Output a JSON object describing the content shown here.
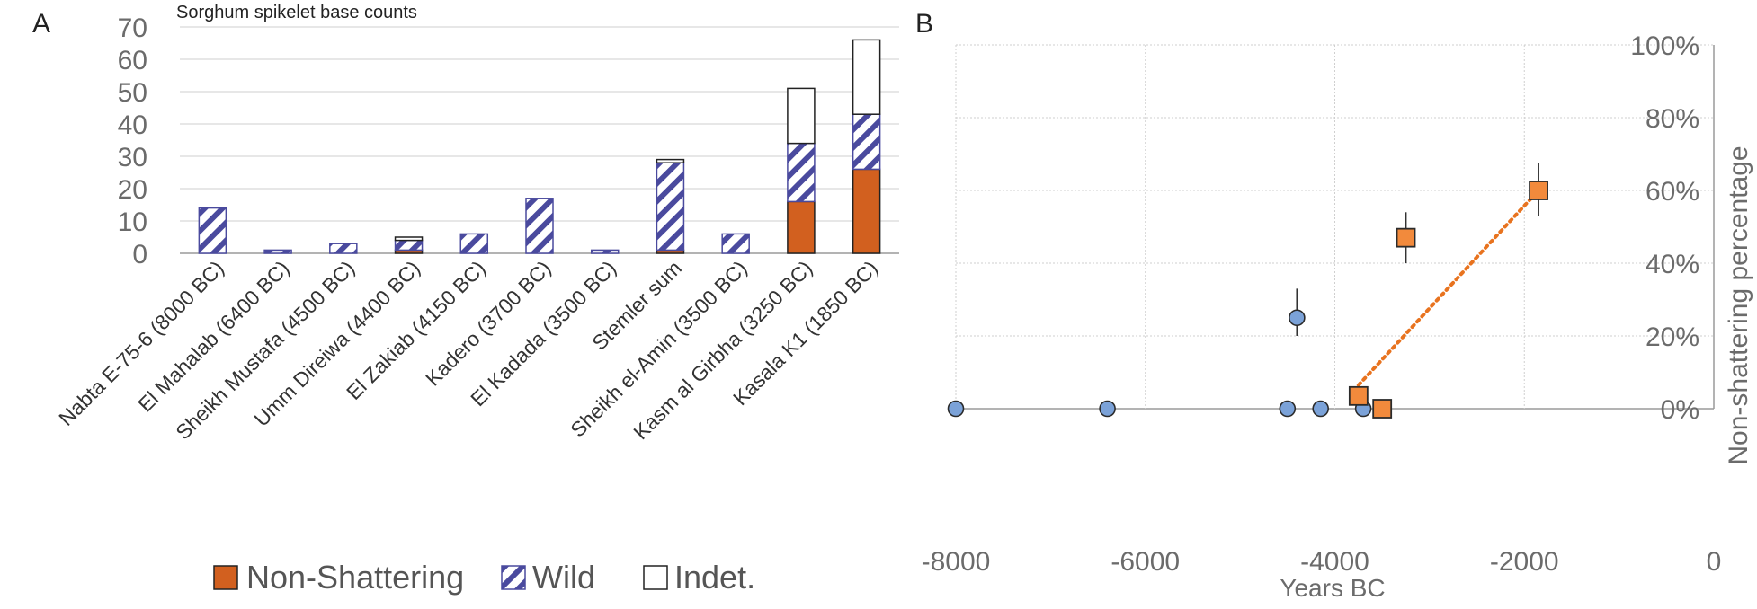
{
  "panel_a_letter": "A",
  "panel_b_letter": "B",
  "colors": {
    "non_shattering": "#d2601f",
    "wild_hatch": "#4a4a9e",
    "indet": "#ffffff",
    "blue_point": "#7ba2d8",
    "orange_point": "#f28a3c",
    "trend_line": "#e8731f",
    "axis_text": "#6b6b6b",
    "grid": "#cfcfcf"
  },
  "chart_data": [
    {
      "type": "bar",
      "stacked": true,
      "title": "Sorghum spikelet base counts",
      "categories": [
        "Nabta E-75-6 (8000 BC)",
        "El Mahalab (6400 BC)",
        "Sheikh Mustafa (4500 BC)",
        "Umm Direiwa (4400 BC)",
        "El Zakiab (4150 BC)",
        "Kadero (3700 BC)",
        "El Kadada (3500 BC)",
        "Stemler sum",
        "Sheikh el-Amin (3500 BC)",
        "Kasm al Girbha (3250 BC)",
        "Kasala K1 (1850 BC)"
      ],
      "series": [
        {
          "name": "Non-Shattering",
          "values": [
            0,
            0,
            0,
            1,
            0,
            0,
            0,
            1,
            0,
            16,
            26
          ]
        },
        {
          "name": "Wild",
          "values": [
            14,
            1,
            3,
            3,
            6,
            17,
            1,
            27,
            6,
            18,
            17
          ]
        },
        {
          "name": "Indet.",
          "values": [
            0,
            0,
            0,
            1,
            0,
            0,
            0,
            1,
            0,
            17,
            23
          ]
        }
      ],
      "ylim": [
        0,
        70
      ],
      "yticks": [
        "0",
        "10",
        "20",
        "30",
        "40",
        "50",
        "60",
        "70"
      ],
      "grid": true,
      "legend_position": "bottom"
    },
    {
      "type": "scatter",
      "xlabel": "Years BC",
      "ylabel": "Non-shattering percentage",
      "xlim": [
        -8000,
        0
      ],
      "ylim": [
        0,
        100
      ],
      "xticks": [
        "-8000",
        "-6000",
        "-4000",
        "-2000",
        "0"
      ],
      "yticks": [
        "0%",
        "20%",
        "40%",
        "60%",
        "80%",
        "100%"
      ],
      "y_axis_side": "right",
      "grid": true,
      "series": [
        {
          "marker": "circle",
          "points": [
            {
              "x": -8000,
              "y": 0
            },
            {
              "x": -6400,
              "y": 0
            },
            {
              "x": -4500,
              "y": 0
            },
            {
              "x": -4400,
              "y": 25,
              "err_low": 20,
              "err_high": 33
            },
            {
              "x": -4150,
              "y": 0
            },
            {
              "x": -3700,
              "y": 0
            }
          ]
        },
        {
          "marker": "square",
          "points": [
            {
              "x": -3750,
              "y": 3.5
            },
            {
              "x": -3500,
              "y": 0
            },
            {
              "x": -3250,
              "y": 47,
              "err_low": 40,
              "err_high": 54
            },
            {
              "x": -1850,
              "y": 60,
              "err_low": 53,
              "err_high": 67.5
            }
          ]
        }
      ],
      "trendline": {
        "style": "dotted",
        "from": {
          "x": -3750,
          "y": 6.5
        },
        "to": {
          "x": -1850,
          "y": 60
        }
      }
    }
  ]
}
